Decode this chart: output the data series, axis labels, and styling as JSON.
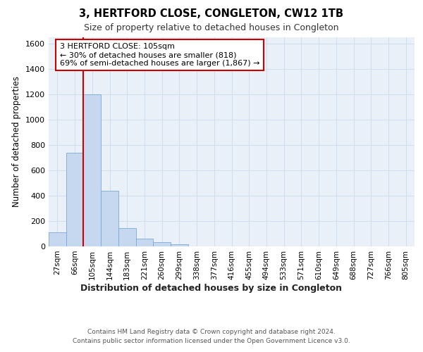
{
  "title": "3, HERTFORD CLOSE, CONGLETON, CW12 1TB",
  "subtitle": "Size of property relative to detached houses in Congleton",
  "xlabel": "Distribution of detached houses by size in Congleton",
  "ylabel": "Number of detached properties",
  "bar_color": "#c5d8f0",
  "bar_edge_color": "#7aaad4",
  "grid_color": "#d0dff0",
  "background_color": "#eaf0f8",
  "vline_color": "#cc0000",
  "annotation_box_color": "#cc0000",
  "annotation_text": "3 HERTFORD CLOSE: 105sqm\n← 30% of detached houses are smaller (818)\n69% of semi-detached houses are larger (1,867) →",
  "categories": [
    "27sqm",
    "66sqm",
    "105sqm",
    "144sqm",
    "183sqm",
    "221sqm",
    "260sqm",
    "299sqm",
    "338sqm",
    "377sqm",
    "416sqm",
    "455sqm",
    "494sqm",
    "533sqm",
    "571sqm",
    "610sqm",
    "649sqm",
    "688sqm",
    "727sqm",
    "766sqm",
    "805sqm"
  ],
  "values": [
    110,
    735,
    1200,
    440,
    145,
    60,
    32,
    18,
    0,
    0,
    0,
    0,
    0,
    0,
    0,
    0,
    0,
    0,
    0,
    0,
    0
  ],
  "ylim": [
    0,
    1650
  ],
  "yticks": [
    0,
    200,
    400,
    600,
    800,
    1000,
    1200,
    1400,
    1600
  ],
  "footer_line1": "Contains HM Land Registry data © Crown copyright and database right 2024.",
  "footer_line2": "Contains public sector information licensed under the Open Government Licence v3.0."
}
